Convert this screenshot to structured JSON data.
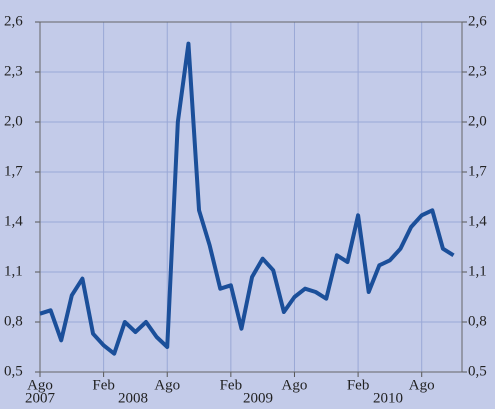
{
  "chart_data": {
    "type": "line",
    "x": [
      0,
      1,
      2,
      3,
      4,
      5,
      6,
      7,
      8,
      9,
      10,
      11,
      12,
      13,
      14,
      15,
      16,
      17,
      18,
      19,
      20,
      21,
      22,
      23,
      24,
      25,
      26,
      27,
      28,
      29,
      30,
      31,
      32,
      33,
      34,
      35,
      36,
      37,
      38,
      39
    ],
    "series": [
      {
        "color": "#1b4f9a",
        "values": [
          0.85,
          0.87,
          0.69,
          0.96,
          1.06,
          0.73,
          0.66,
          0.61,
          0.8,
          0.74,
          0.8,
          0.71,
          0.65,
          2.0,
          2.47,
          1.47,
          1.26,
          1.0,
          1.02,
          0.76,
          1.07,
          1.18,
          1.11,
          0.86,
          0.95,
          1.0,
          0.98,
          0.94,
          1.2,
          1.16,
          1.44,
          0.98,
          1.14,
          1.17,
          1.24,
          1.37,
          1.44,
          1.47,
          1.24,
          1.2
        ]
      }
    ],
    "xlim": [
      0,
      39.8
    ],
    "xticks": [
      {
        "value": 0,
        "label": "Ago"
      },
      {
        "value": 6,
        "label": "Feb"
      },
      {
        "value": 12,
        "label": "Ago"
      },
      {
        "value": 18,
        "label": "Feb"
      },
      {
        "value": 24,
        "label": "Ago"
      },
      {
        "value": 30,
        "label": "Feb"
      },
      {
        "value": 36,
        "label": "Ago"
      }
    ],
    "years": [
      "2007",
      "2008",
      "2009",
      "2010"
    ],
    "ylim": [
      0.5,
      2.6
    ],
    "yticks": [
      {
        "value": 0.5,
        "label": "0,5"
      },
      {
        "value": 0.8,
        "label": "0,8"
      },
      {
        "value": 1.1,
        "label": "1,1"
      },
      {
        "value": 1.4,
        "label": "1,4"
      },
      {
        "value": 1.7,
        "label": "1,7"
      },
      {
        "value": 2.0,
        "label": "2,0"
      },
      {
        "value": 2.3,
        "label": "2,3"
      },
      {
        "value": 2.6,
        "label": "2,6"
      }
    ],
    "y2lim": [
      0.5,
      2.6
    ],
    "y2ticks": [
      {
        "value": 0.5,
        "label": "0,5"
      },
      {
        "value": 0.8,
        "label": "0,8"
      },
      {
        "value": 1.1,
        "label": "1,1"
      },
      {
        "value": 1.4,
        "label": "1,4"
      },
      {
        "value": 1.7,
        "label": "1,7"
      },
      {
        "value": 2.0,
        "label": "2,0"
      },
      {
        "value": 2.3,
        "label": "2,3"
      },
      {
        "value": 2.6,
        "label": "2,6"
      }
    ],
    "grid": true
  }
}
